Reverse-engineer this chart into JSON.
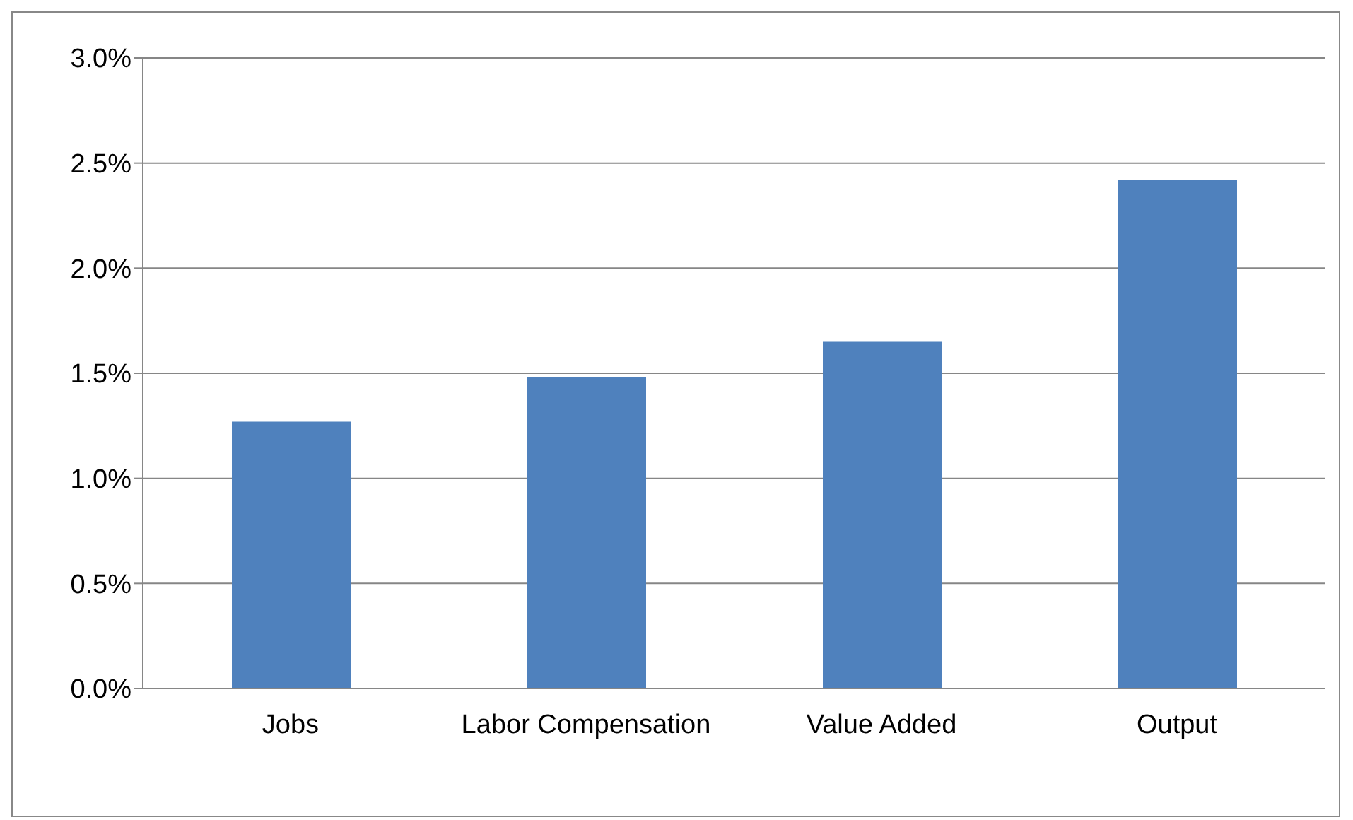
{
  "chart_data": {
    "type": "bar",
    "categories": [
      "Jobs",
      "Labor Compensation",
      "Value Added",
      "Output"
    ],
    "values": [
      1.27,
      1.48,
      1.65,
      2.42
    ],
    "color": "#4f81bd",
    "ylim": [
      0,
      3
    ],
    "yticks": [
      {
        "value": 0,
        "label": "0.0%"
      },
      {
        "value": 0.5,
        "label": "0.5%"
      },
      {
        "value": 1,
        "label": "1.0%"
      },
      {
        "value": 1.5,
        "label": "1.5%"
      },
      {
        "value": 2,
        "label": "2.0%"
      },
      {
        "value": 2.5,
        "label": "2.5%"
      },
      {
        "value": 3,
        "label": "3.0%"
      }
    ],
    "grid": "y",
    "legend": false
  }
}
